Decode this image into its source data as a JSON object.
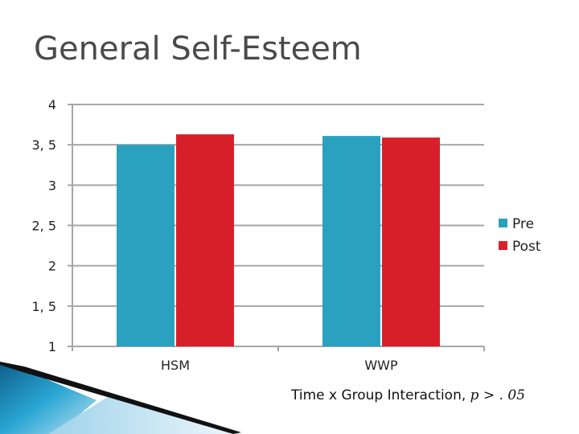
{
  "slide": {
    "footnote_text": "Time x Group Interaction, ",
    "footnote_stat": "p > . 05"
  },
  "colors": {
    "pre": "#2aa1bf",
    "post": "#d8202b",
    "grid": "#a6a6a6",
    "title": "#4a4a4a"
  },
  "chart_data": {
    "type": "bar",
    "title": "General Self-Esteem",
    "categories": [
      "HSM",
      "WWP"
    ],
    "series": [
      {
        "name": "Pre",
        "values": [
          3.5,
          3.61
        ]
      },
      {
        "name": "Post",
        "values": [
          3.63,
          3.59
        ]
      }
    ],
    "ylim": [
      1,
      4
    ],
    "yticks": [
      1,
      1.5,
      2,
      2.5,
      3,
      3.5,
      4
    ],
    "ytick_labels": [
      "1",
      "1, 5",
      "2",
      "2, 5",
      "3",
      "3, 5",
      "4"
    ],
    "grid": true,
    "legend": "right"
  }
}
